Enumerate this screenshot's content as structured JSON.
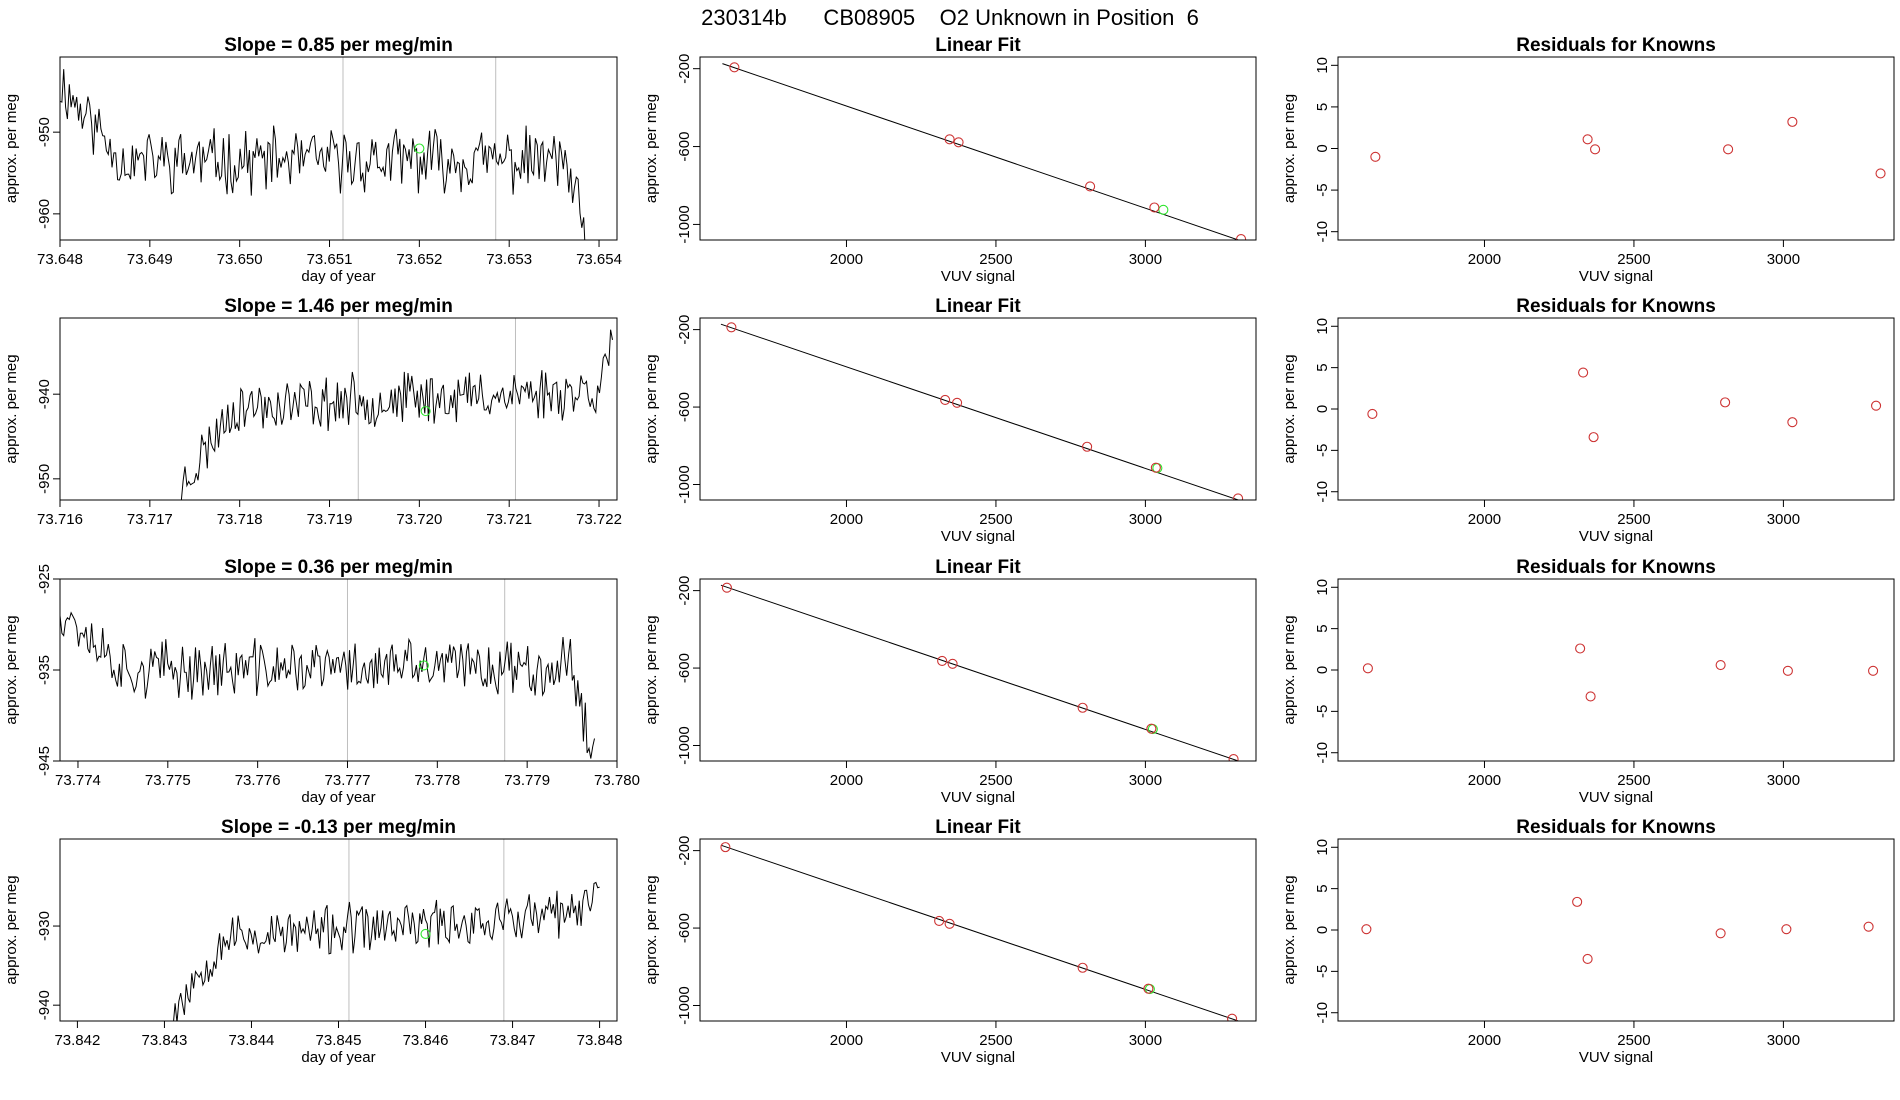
{
  "page_title": "230314b      CB08905    O2 Unknown in Position  6",
  "colors": {
    "known": "#cd3333",
    "unknown": "#2ee62e",
    "line": "#000000",
    "marker_line": "#bebebe"
  },
  "chart_data": [
    {
      "row": 1,
      "type": "line",
      "title": "Slope =  0.85  per meg/min",
      "xlabel": "day of year",
      "ylabel": "approx. per meg",
      "xlim": [
        73.648,
        73.6542
      ],
      "ylim": [
        -963.2,
        -940.8
      ],
      "xticks": [
        "73.648",
        "73.649",
        "73.650",
        "73.651",
        "73.652",
        "73.653",
        "73.654"
      ],
      "yticks": [
        "-950",
        "-960"
      ],
      "ytick_values": [
        -950,
        -960
      ],
      "vlines": [
        73.65115,
        73.65285
      ],
      "trace": {
        "x_start": 73.648,
        "x_end": 73.65385,
        "mean_start": -944,
        "mean_mid": -953.5,
        "mean_end": -953.5,
        "drop_end": -963,
        "amplitude": 3.2,
        "seed": 11
      },
      "unknown_point": {
        "x": 73.652,
        "y": -952
      }
    },
    {
      "row": 1,
      "type": "scatter",
      "title": "Linear Fit",
      "xlabel": "VUV signal",
      "ylabel": "approx. per meg",
      "xlim": [
        1510,
        3370
      ],
      "ylim": [
        -1080,
        -140
      ],
      "xticks": [
        "2000",
        "2500",
        "3000"
      ],
      "xtick_values": [
        2000,
        2500,
        3000
      ],
      "yticks": [
        "-200",
        "-600",
        "-1000"
      ],
      "ytick_values": [
        -200,
        -600,
        -1000
      ],
      "fit_line": [
        [
          1585,
          -174
        ],
        [
          3330,
          -1090
        ]
      ],
      "knowns": [
        [
          1625,
          -193
        ],
        [
          2345,
          -563
        ],
        [
          2375,
          -578
        ],
        [
          2815,
          -805
        ],
        [
          3030,
          -913
        ],
        [
          3320,
          -1075
        ]
      ],
      "unknown": [
        [
          3060,
          -925
        ]
      ]
    },
    {
      "row": 1,
      "type": "scatter",
      "title": "Residuals for Knowns",
      "xlabel": "VUV signal",
      "ylabel": "approx. per meg",
      "xlim": [
        1510,
        3370
      ],
      "ylim": [
        -11,
        11
      ],
      "xticks": [
        "2000",
        "2500",
        "3000"
      ],
      "xtick_values": [
        2000,
        2500,
        3000
      ],
      "yticks": [
        "10",
        "5",
        "0",
        "-5",
        "-10"
      ],
      "ytick_values": [
        10,
        5,
        0,
        -5,
        -10
      ],
      "points": [
        [
          1635,
          -1.0
        ],
        [
          2345,
          1.1
        ],
        [
          2370,
          -0.1
        ],
        [
          2815,
          -0.1
        ],
        [
          3030,
          3.2
        ],
        [
          3325,
          -3.0
        ]
      ]
    },
    {
      "row": 2,
      "type": "line",
      "title": "Slope =  1.46  per meg/min",
      "xlabel": "",
      "ylabel": "approx. per meg",
      "xlim": [
        73.716,
        73.7222
      ],
      "ylim": [
        -952.5,
        -931
      ],
      "xticks": [
        "73.716",
        "73.717",
        "73.718",
        "73.719",
        "73.720",
        "73.721",
        "73.722"
      ],
      "yticks": [
        "-940",
        "-950"
      ],
      "ytick_values": [
        -940,
        -950
      ],
      "vlines": [
        73.71932,
        73.72107
      ],
      "trace": {
        "x_start": 73.71735,
        "x_end": 73.72215,
        "mean_start": -951,
        "mean_mid": -941.5,
        "mean_end": -939.5,
        "drop_end": -934,
        "amplitude": 2.6,
        "seed": 23
      },
      "unknown_point": {
        "x": 73.72007,
        "y": -942
      }
    },
    {
      "row": 2,
      "type": "scatter",
      "title": "Linear Fit",
      "xlabel": "VUV signal",
      "ylabel": "approx. per meg",
      "xlim": [
        1510,
        3370
      ],
      "ylim": [
        -1080,
        -140
      ],
      "xticks": [
        "2000",
        "2500",
        "3000"
      ],
      "xtick_values": [
        2000,
        2500,
        3000
      ],
      "yticks": [
        "-200",
        "-600",
        "-1000"
      ],
      "ytick_values": [
        -200,
        -600,
        -1000
      ],
      "fit_line": [
        [
          1580,
          -172
        ],
        [
          3330,
          -1090
        ]
      ],
      "knowns": [
        [
          1615,
          -188
        ],
        [
          2330,
          -563
        ],
        [
          2370,
          -578
        ],
        [
          2805,
          -805
        ],
        [
          3035,
          -913
        ],
        [
          3310,
          -1072
        ]
      ],
      "unknown": [
        [
          3040,
          -915
        ]
      ]
    },
    {
      "row": 2,
      "type": "scatter",
      "title": "Residuals for Knowns",
      "xlabel": "VUV signal",
      "ylabel": "approx. per meg",
      "xlim": [
        1510,
        3370
      ],
      "ylim": [
        -11,
        11
      ],
      "xticks": [
        "2000",
        "2500",
        "3000"
      ],
      "xtick_values": [
        2000,
        2500,
        3000
      ],
      "yticks": [
        "10",
        "5",
        "0",
        "-5",
        "-10"
      ],
      "ytick_values": [
        10,
        5,
        0,
        -5,
        -10
      ],
      "points": [
        [
          1625,
          -0.6
        ],
        [
          2330,
          4.4
        ],
        [
          2365,
          -3.4
        ],
        [
          2805,
          0.8
        ],
        [
          3030,
          -1.6
        ],
        [
          3310,
          0.4
        ]
      ]
    },
    {
      "row": 3,
      "type": "line",
      "title": "Slope =  0.36  per meg/min",
      "xlabel": "day of year",
      "ylabel": "approx. per meg",
      "xlim": [
        73.7738,
        73.78
      ],
      "ylim": [
        -945,
        -925
      ],
      "xticks": [
        "73.774",
        "73.775",
        "73.776",
        "73.777",
        "73.778",
        "73.779",
        "73.780"
      ],
      "yticks": [
        "-925",
        "-935",
        "-945"
      ],
      "ytick_values": [
        -925,
        -935,
        -945
      ],
      "vlines": [
        73.777,
        73.77875
      ],
      "trace": {
        "x_start": 73.7738,
        "x_end": 73.77975,
        "mean_start": -928,
        "mean_mid": -935,
        "mean_end": -934.5,
        "drop_end": -945,
        "amplitude": 2.6,
        "seed": 37
      },
      "unknown_point": {
        "x": 73.77785,
        "y": -934.5
      }
    },
    {
      "row": 3,
      "type": "scatter",
      "title": "Linear Fit",
      "xlabel": "VUV signal",
      "ylabel": "approx. per meg",
      "xlim": [
        1510,
        3370
      ],
      "ylim": [
        -1080,
        -140
      ],
      "xticks": [
        "2000",
        "2500",
        "3000"
      ],
      "xtick_values": [
        2000,
        2500,
        3000
      ],
      "yticks": [
        "-200",
        "-600",
        "-1000"
      ],
      "ytick_values": [
        -200,
        -600,
        -1000
      ],
      "fit_line": [
        [
          1580,
          -172
        ],
        [
          3330,
          -1090
        ]
      ],
      "knowns": [
        [
          1600,
          -185
        ],
        [
          2320,
          -563
        ],
        [
          2355,
          -578
        ],
        [
          2790,
          -805
        ],
        [
          3020,
          -913
        ],
        [
          3295,
          -1070
        ]
      ],
      "unknown": [
        [
          3025,
          -915
        ]
      ]
    },
    {
      "row": 3,
      "type": "scatter",
      "title": "Residuals for Knowns",
      "xlabel": "VUV signal",
      "ylabel": "approx. per meg",
      "xlim": [
        1510,
        3370
      ],
      "ylim": [
        -11,
        11
      ],
      "xticks": [
        "2000",
        "2500",
        "3000"
      ],
      "xtick_values": [
        2000,
        2500,
        3000
      ],
      "yticks": [
        "10",
        "5",
        "0",
        "-5",
        "-10"
      ],
      "ytick_values": [
        10,
        5,
        0,
        -5,
        -10
      ],
      "points": [
        [
          1610,
          0.2
        ],
        [
          2320,
          2.6
        ],
        [
          2355,
          -3.2
        ],
        [
          2790,
          0.6
        ],
        [
          3015,
          -0.1
        ],
        [
          3300,
          -0.1
        ]
      ]
    },
    {
      "row": 4,
      "type": "line",
      "title": "Slope =  -0.13  per meg/min",
      "xlabel": "day of year",
      "ylabel": "approx. per meg",
      "xlim": [
        73.8418,
        73.8482
      ],
      "ylim": [
        -942,
        -919
      ],
      "xticks": [
        "73.842",
        "73.843",
        "73.844",
        "73.845",
        "73.846",
        "73.847",
        "73.848"
      ],
      "yticks": [
        "-930",
        "-940"
      ],
      "ytick_values": [
        -930,
        -940
      ],
      "vlines": [
        73.84512,
        73.8469
      ],
      "trace": {
        "x_start": 73.84308,
        "x_end": 73.848,
        "mean_start": -941,
        "mean_mid": -931.5,
        "mean_end": -928.5,
        "drop_end": -923,
        "amplitude": 2.6,
        "seed": 53
      },
      "unknown_point": {
        "x": 73.846,
        "y": -931
      }
    },
    {
      "row": 4,
      "type": "scatter",
      "title": "Linear Fit",
      "xlabel": "VUV signal",
      "ylabel": "approx. per meg",
      "xlim": [
        1510,
        3370
      ],
      "ylim": [
        -1080,
        -140
      ],
      "xticks": [
        "2000",
        "2500",
        "3000"
      ],
      "xtick_values": [
        2000,
        2500,
        3000
      ],
      "yticks": [
        "-200",
        "-600",
        "-1000"
      ],
      "ytick_values": [
        -200,
        -600,
        -1000
      ],
      "fit_line": [
        [
          1580,
          -172
        ],
        [
          3330,
          -1090
        ]
      ],
      "knowns": [
        [
          1595,
          -182
        ],
        [
          2310,
          -563
        ],
        [
          2345,
          -578
        ],
        [
          2790,
          -805
        ],
        [
          3010,
          -913
        ],
        [
          3290,
          -1068
        ]
      ],
      "unknown": [
        [
          3015,
          -915
        ]
      ]
    },
    {
      "row": 4,
      "type": "scatter",
      "title": "Residuals for Knowns",
      "xlabel": "VUV signal",
      "ylabel": "approx. per meg",
      "xlim": [
        1510,
        3370
      ],
      "ylim": [
        -11,
        11
      ],
      "xticks": [
        "2000",
        "2500",
        "3000"
      ],
      "xtick_values": [
        2000,
        2500,
        3000
      ],
      "yticks": [
        "10",
        "5",
        "0",
        "-5",
        "-10"
      ],
      "ytick_values": [
        10,
        5,
        0,
        -5,
        -10
      ],
      "points": [
        [
          1605,
          0.1
        ],
        [
          2310,
          3.4
        ],
        [
          2345,
          -3.5
        ],
        [
          2790,
          -0.4
        ],
        [
          3010,
          0.1
        ],
        [
          3285,
          0.4
        ]
      ]
    }
  ]
}
